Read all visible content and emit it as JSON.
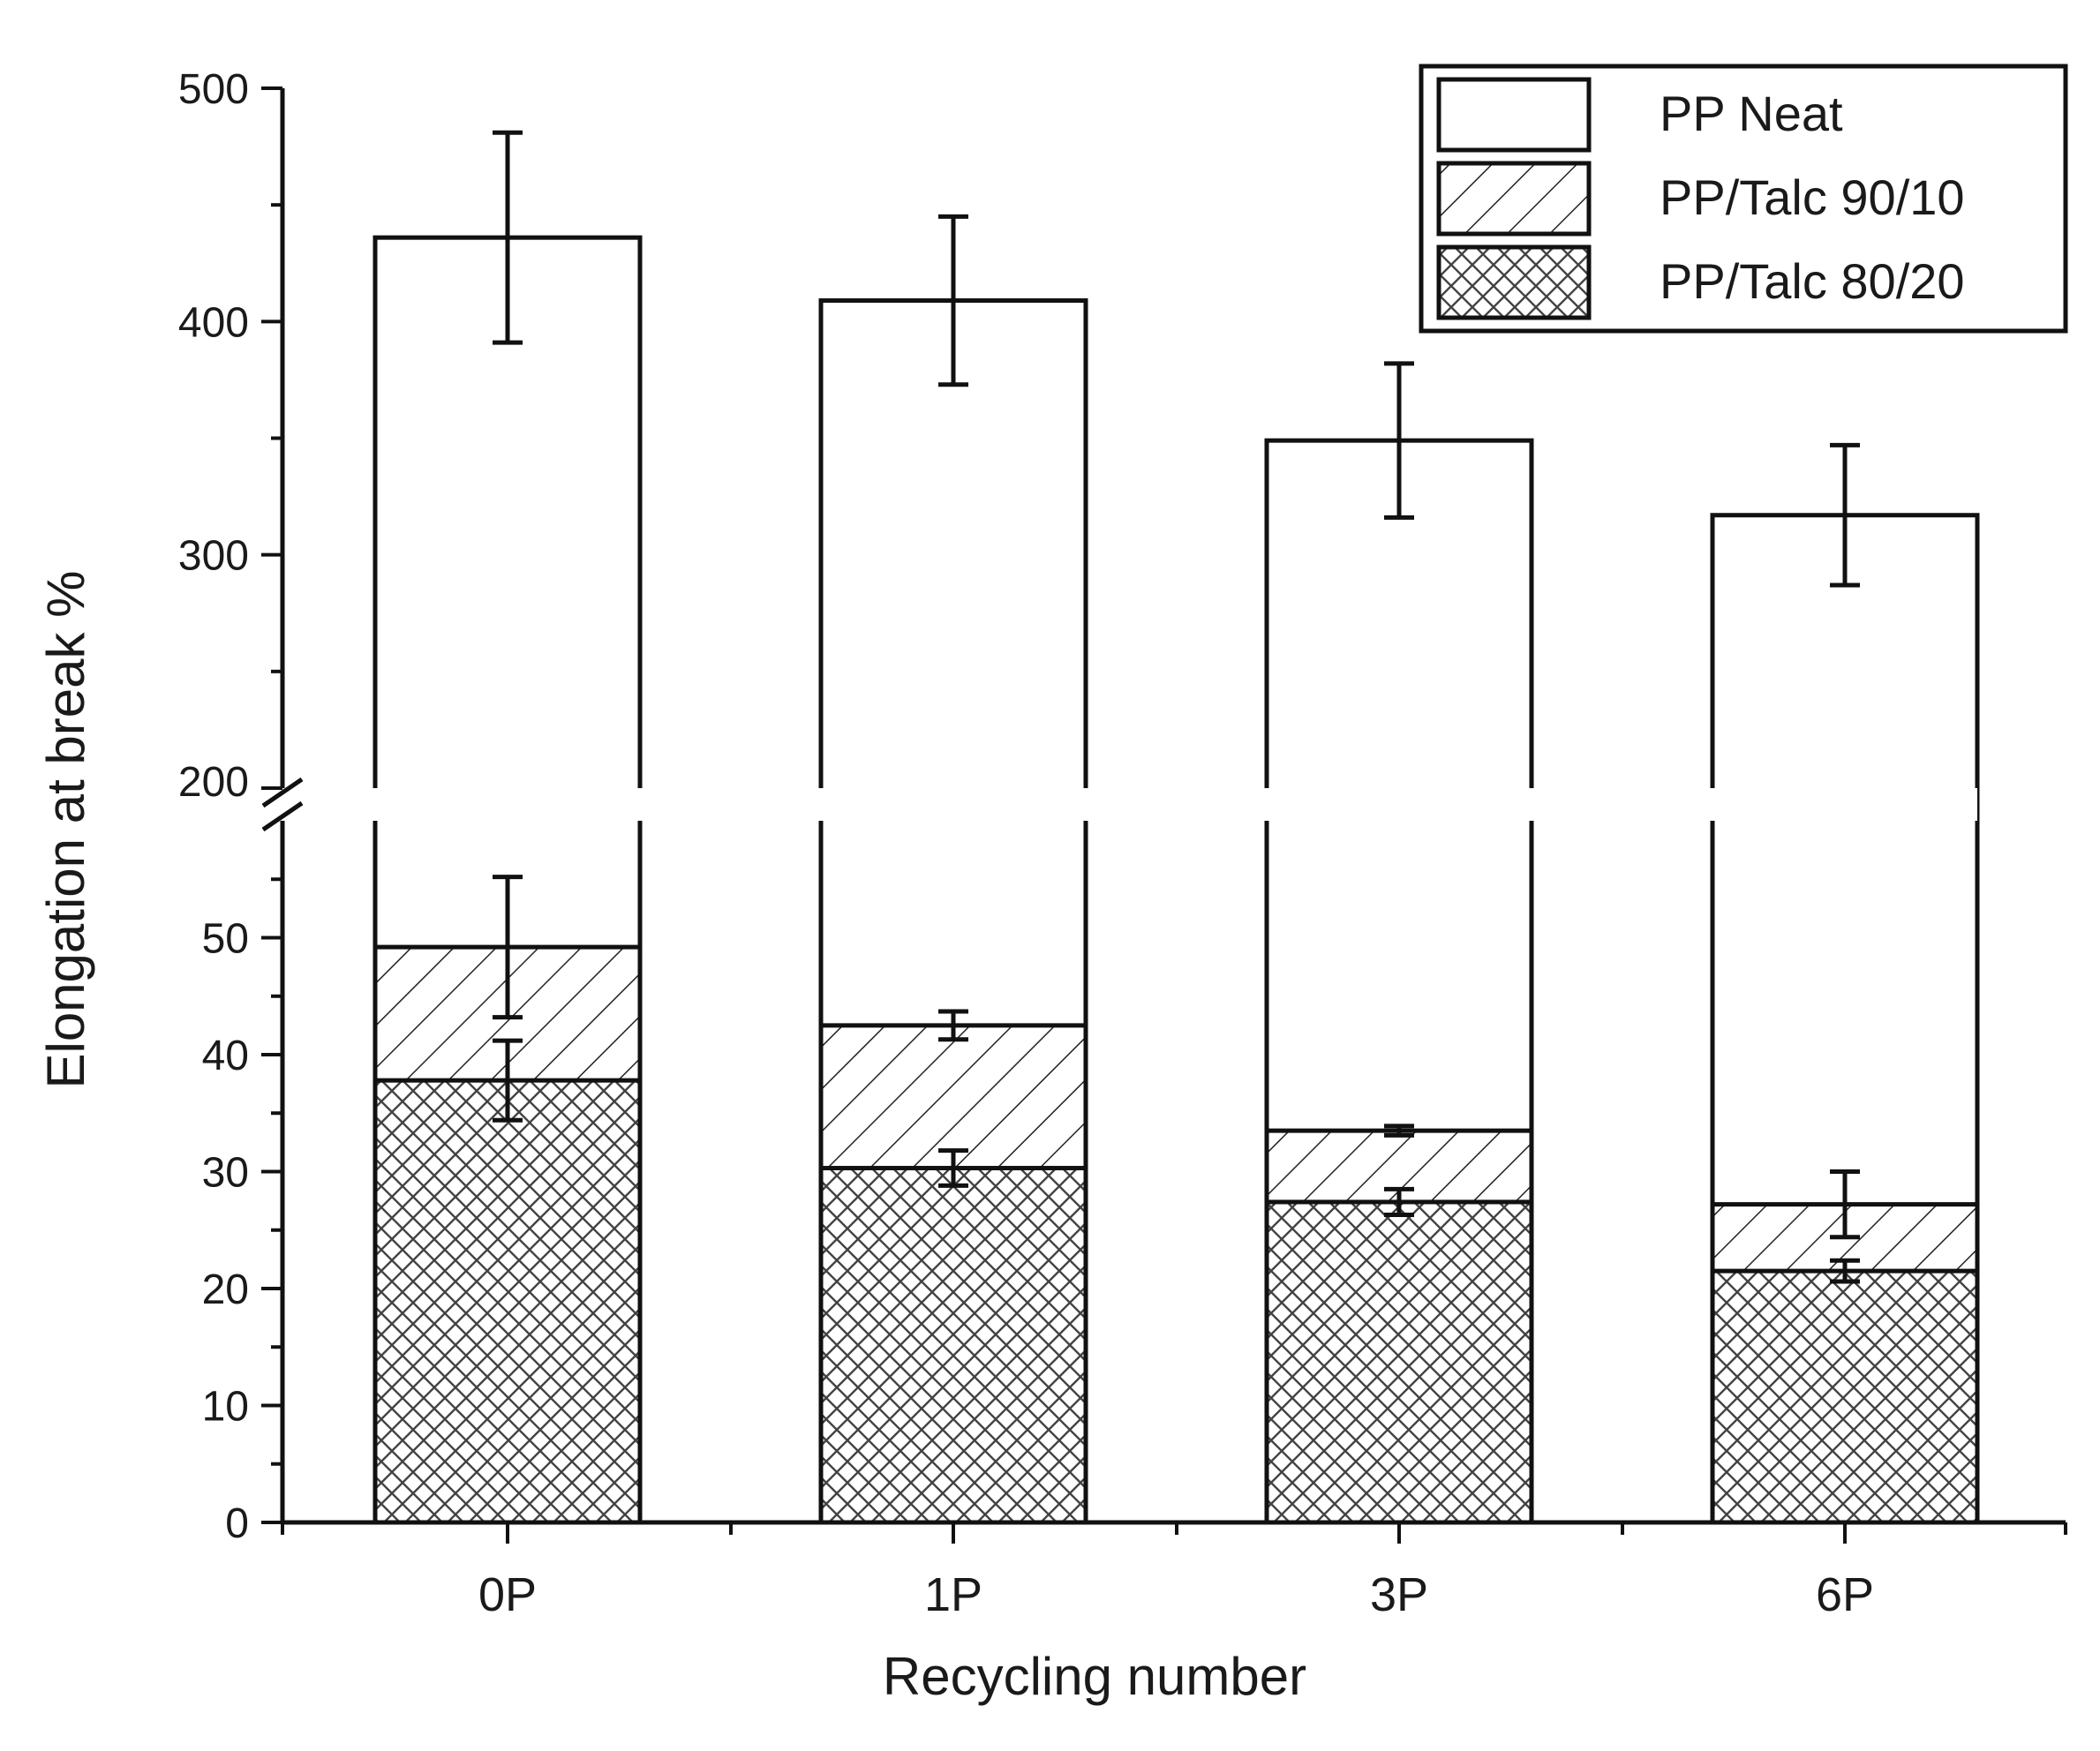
{
  "chart_data": {
    "type": "bar",
    "layout": "overlaid",
    "categories": [
      "0P",
      "1P",
      "3P",
      "6P"
    ],
    "xlabel": "Recycling number",
    "ylabel": "Elongation at break %",
    "y_axis": {
      "broken": true,
      "lower_range": [
        0,
        60
      ],
      "upper_range": [
        200,
        500
      ],
      "lower_ticks": [
        0,
        10,
        20,
        30,
        40,
        50
      ],
      "upper_ticks": [
        200,
        300,
        400,
        500
      ]
    },
    "legend_position": "top-right",
    "series": [
      {
        "name": "PP Neat",
        "pattern": "none",
        "values": [
          436,
          409,
          349,
          317
        ],
        "errors": [
          45,
          36,
          33,
          30
        ]
      },
      {
        "name": "PP/Talc 90/10",
        "pattern": "hatch",
        "values": [
          49.2,
          42.5,
          33.5,
          27.2
        ],
        "errors": [
          6.0,
          1.2,
          0.4,
          2.8
        ]
      },
      {
        "name": "PP/Talc 80/20",
        "pattern": "crosshatch",
        "values": [
          37.8,
          30.3,
          27.4,
          21.5
        ],
        "errors": [
          3.4,
          1.5,
          1.1,
          0.9
        ]
      }
    ]
  }
}
